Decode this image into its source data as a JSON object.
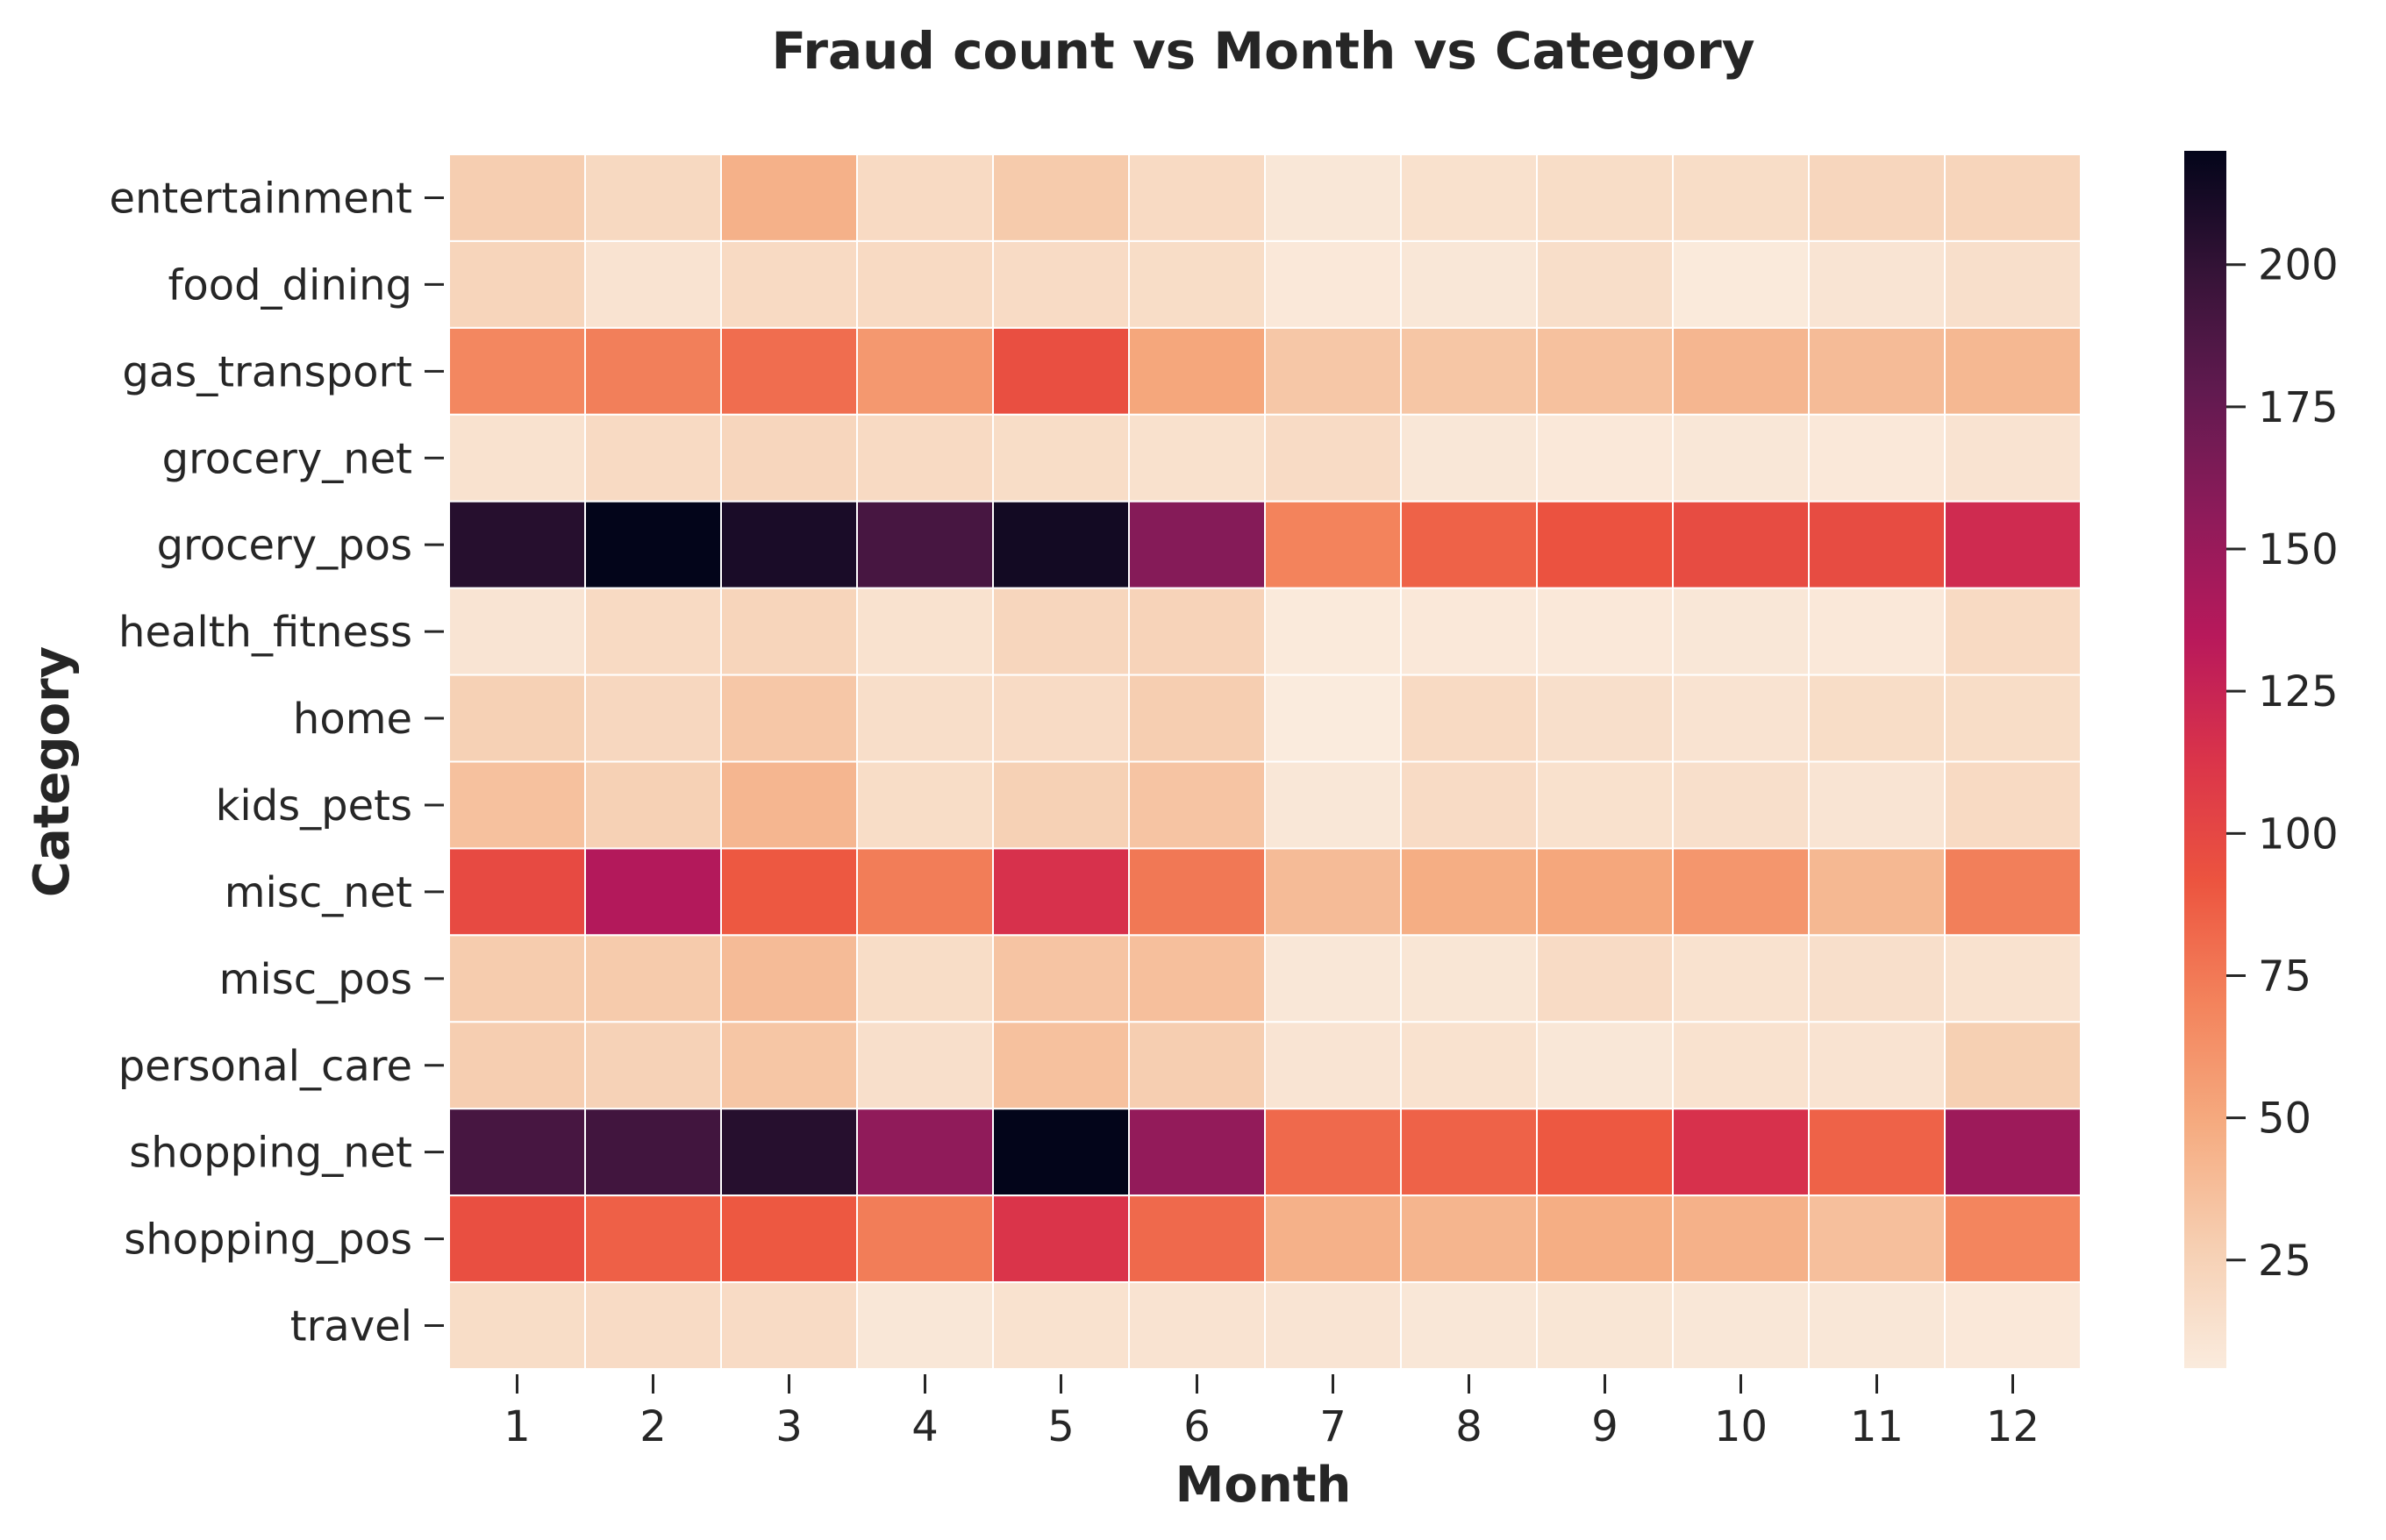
{
  "chart_data": {
    "type": "heatmap",
    "title": "Fraud count vs Month vs Category",
    "xlabel": "Month",
    "ylabel": "Category",
    "x": [
      "1",
      "2",
      "3",
      "4",
      "5",
      "6",
      "7",
      "8",
      "9",
      "10",
      "11",
      "12"
    ],
    "y": [
      "entertainment",
      "food_dining",
      "gas_transport",
      "grocery_net",
      "grocery_pos",
      "health_fitness",
      "home",
      "kids_pets",
      "misc_net",
      "misc_pos",
      "personal_care",
      "shopping_net",
      "shopping_pos",
      "travel"
    ],
    "values": [
      [
        28,
        20,
        45,
        19,
        30,
        19,
        9,
        14,
        17,
        17,
        22,
        23
      ],
      [
        23,
        12,
        19,
        19,
        18,
        17,
        8,
        9,
        16,
        7,
        11,
        15
      ],
      [
        68,
        72,
        80,
        59,
        95,
        51,
        32,
        33,
        36,
        42,
        39,
        41
      ],
      [
        13,
        19,
        22,
        19,
        17,
        14,
        18,
        9,
        8,
        9,
        8,
        12
      ],
      [
        205,
        220,
        210,
        190,
        213,
        160,
        70,
        85,
        93,
        97,
        97,
        120
      ],
      [
        11,
        19,
        23,
        13,
        22,
        24,
        7,
        8,
        8,
        9,
        8,
        19
      ],
      [
        26,
        21,
        32,
        16,
        18,
        28,
        6,
        19,
        15,
        12,
        17,
        17
      ],
      [
        36,
        26,
        42,
        17,
        26,
        34,
        9,
        18,
        14,
        15,
        11,
        19
      ],
      [
        98,
        137,
        90,
        73,
        115,
        75,
        39,
        47,
        51,
        60,
        41,
        72
      ],
      [
        29,
        30,
        39,
        17,
        34,
        37,
        9,
        10,
        18,
        13,
        15,
        13
      ],
      [
        28,
        25,
        33,
        15,
        36,
        28,
        11,
        13,
        9,
        13,
        12,
        27
      ],
      [
        190,
        193,
        205,
        155,
        220,
        153,
        82,
        85,
        90,
        115,
        85,
        148
      ],
      [
        95,
        86,
        90,
        73,
        113,
        82,
        45,
        43,
        47,
        45,
        37,
        69
      ],
      [
        17,
        18,
        18,
        9,
        13,
        12,
        11,
        9,
        10,
        9,
        9,
        8
      ]
    ],
    "vmin": 6,
    "vmax": 220,
    "colorbar_ticks": [
      25,
      50,
      75,
      100,
      125,
      150,
      175,
      200
    ],
    "colormap": "rocket_r",
    "grid": false,
    "legend": "colorbar-right"
  }
}
